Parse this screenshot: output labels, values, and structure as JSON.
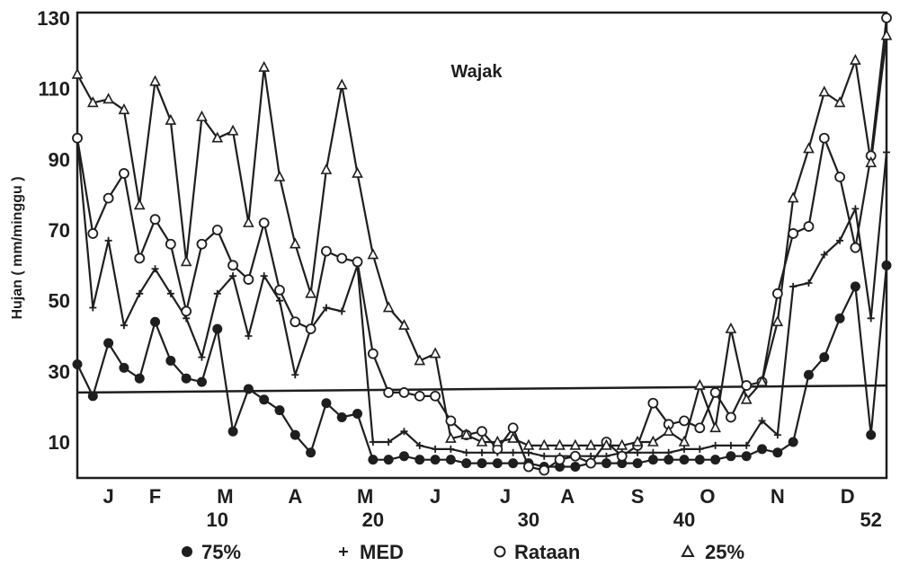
{
  "chart_data": {
    "type": "line",
    "title": "Wajak",
    "ylabel": "Hujan ( mm/minggu )",
    "xlabel": "",
    "xlim": [
      0,
      52
    ],
    "ylim": [
      0,
      130
    ],
    "y_ticks": [
      10,
      30,
      50,
      70,
      90,
      110,
      130
    ],
    "month_labels": [
      {
        "label": "J",
        "x": 2
      },
      {
        "label": "F",
        "x": 5
      },
      {
        "label": "M",
        "x": 9.5
      },
      {
        "label": "A",
        "x": 14
      },
      {
        "label": "M",
        "x": 18.5
      },
      {
        "label": "J",
        "x": 23
      },
      {
        "label": "J",
        "x": 27.5
      },
      {
        "label": "A",
        "x": 31.5
      },
      {
        "label": "S",
        "x": 36
      },
      {
        "label": "O",
        "x": 40.5
      },
      {
        "label": "N",
        "x": 45
      },
      {
        "label": "D",
        "x": 49.5
      }
    ],
    "week_labels": [
      {
        "label": "10",
        "x": 9
      },
      {
        "label": "20",
        "x": 19
      },
      {
        "label": "30",
        "x": 29
      },
      {
        "label": "40",
        "x": 39
      },
      {
        "label": "52",
        "x": 51
      }
    ],
    "reference_line": {
      "x": [
        0,
        52
      ],
      "y": [
        24,
        26
      ]
    },
    "grid": false,
    "legend_position": "bottom",
    "series": [
      {
        "name": "75%",
        "marker": "filled-circle",
        "x": [
          0,
          1,
          2,
          3,
          4,
          5,
          6,
          7,
          8,
          9,
          10,
          11,
          12,
          13,
          14,
          15,
          16,
          17,
          18,
          19,
          20,
          21,
          22,
          23,
          24,
          25,
          26,
          27,
          28,
          29,
          30,
          31,
          32,
          33,
          34,
          35,
          36,
          37,
          38,
          39,
          40,
          41,
          42,
          43,
          44,
          45,
          46,
          47,
          48,
          49,
          50,
          51,
          52
        ],
        "values": [
          32,
          23,
          38,
          31,
          28,
          44,
          33,
          28,
          27,
          42,
          13,
          25,
          22,
          19,
          12,
          7,
          21,
          17,
          18,
          5,
          5,
          6,
          5,
          5,
          5,
          4,
          4,
          4,
          4,
          4,
          3,
          3,
          3,
          4,
          4,
          4,
          4,
          5,
          5,
          5,
          5,
          5,
          6,
          6,
          8,
          7,
          10,
          29,
          34,
          45,
          54,
          12,
          60
        ]
      },
      {
        "name": "MED",
        "marker": "plus",
        "x": [
          0,
          1,
          2,
          3,
          4,
          5,
          6,
          7,
          8,
          9,
          10,
          11,
          12,
          13,
          14,
          15,
          16,
          17,
          18,
          19,
          20,
          21,
          22,
          23,
          24,
          25,
          26,
          27,
          28,
          29,
          30,
          31,
          32,
          33,
          34,
          35,
          36,
          37,
          38,
          39,
          40,
          41,
          42,
          43,
          44,
          45,
          46,
          47,
          48,
          49,
          50,
          51,
          52
        ],
        "values": [
          96,
          48,
          67,
          43,
          52,
          59,
          52,
          45,
          34,
          52,
          57,
          40,
          57,
          50,
          29,
          42,
          48,
          47,
          60,
          10,
          10,
          13,
          9,
          8,
          8,
          7,
          7,
          7,
          7,
          7,
          6,
          6,
          6,
          6,
          6,
          7,
          7,
          7,
          7,
          8,
          8,
          9,
          9,
          9,
          16,
          12,
          54,
          55,
          63,
          67,
          76,
          45,
          92
        ]
      },
      {
        "name": "Rataan",
        "marker": "open-circle",
        "x": [
          0,
          1,
          2,
          3,
          4,
          5,
          6,
          7,
          8,
          9,
          10,
          11,
          12,
          13,
          14,
          15,
          16,
          17,
          18,
          19,
          20,
          21,
          22,
          23,
          24,
          25,
          26,
          27,
          28,
          29,
          30,
          31,
          32,
          33,
          34,
          35,
          36,
          37,
          38,
          39,
          40,
          41,
          42,
          43,
          44,
          45,
          46,
          47,
          48,
          49,
          50,
          51,
          52
        ],
        "values": [
          96,
          69,
          79,
          86,
          62,
          73,
          66,
          47,
          66,
          70,
          60,
          56,
          72,
          53,
          44,
          42,
          64,
          62,
          61,
          35,
          24,
          24,
          23,
          23,
          16,
          12,
          13,
          8,
          14,
          3,
          2,
          5,
          6,
          4,
          10,
          6,
          9,
          21,
          15,
          16,
          14,
          24,
          17,
          26,
          27,
          52,
          69,
          71,
          96,
          85,
          65,
          91,
          130
        ]
      },
      {
        "name": "25%",
        "marker": "open-triangle",
        "x": [
          0,
          1,
          2,
          3,
          4,
          5,
          6,
          7,
          8,
          9,
          10,
          11,
          12,
          13,
          14,
          15,
          16,
          17,
          18,
          19,
          20,
          21,
          22,
          23,
          24,
          25,
          26,
          27,
          28,
          29,
          30,
          31,
          32,
          33,
          34,
          35,
          36,
          37,
          38,
          39,
          40,
          41,
          42,
          43,
          44,
          45,
          46,
          47,
          48,
          49,
          50,
          51,
          52
        ],
        "values": [
          114,
          106,
          107,
          104,
          77,
          112,
          101,
          61,
          102,
          96,
          98,
          72,
          116,
          85,
          66,
          52,
          87,
          111,
          86,
          63,
          48,
          43,
          33,
          35,
          11,
          12,
          10,
          10,
          11,
          9,
          9,
          9,
          9,
          9,
          9,
          9,
          10,
          10,
          13,
          10,
          26,
          14,
          42,
          22,
          27,
          44,
          79,
          93,
          109,
          106,
          118,
          89,
          125
        ]
      }
    ]
  }
}
